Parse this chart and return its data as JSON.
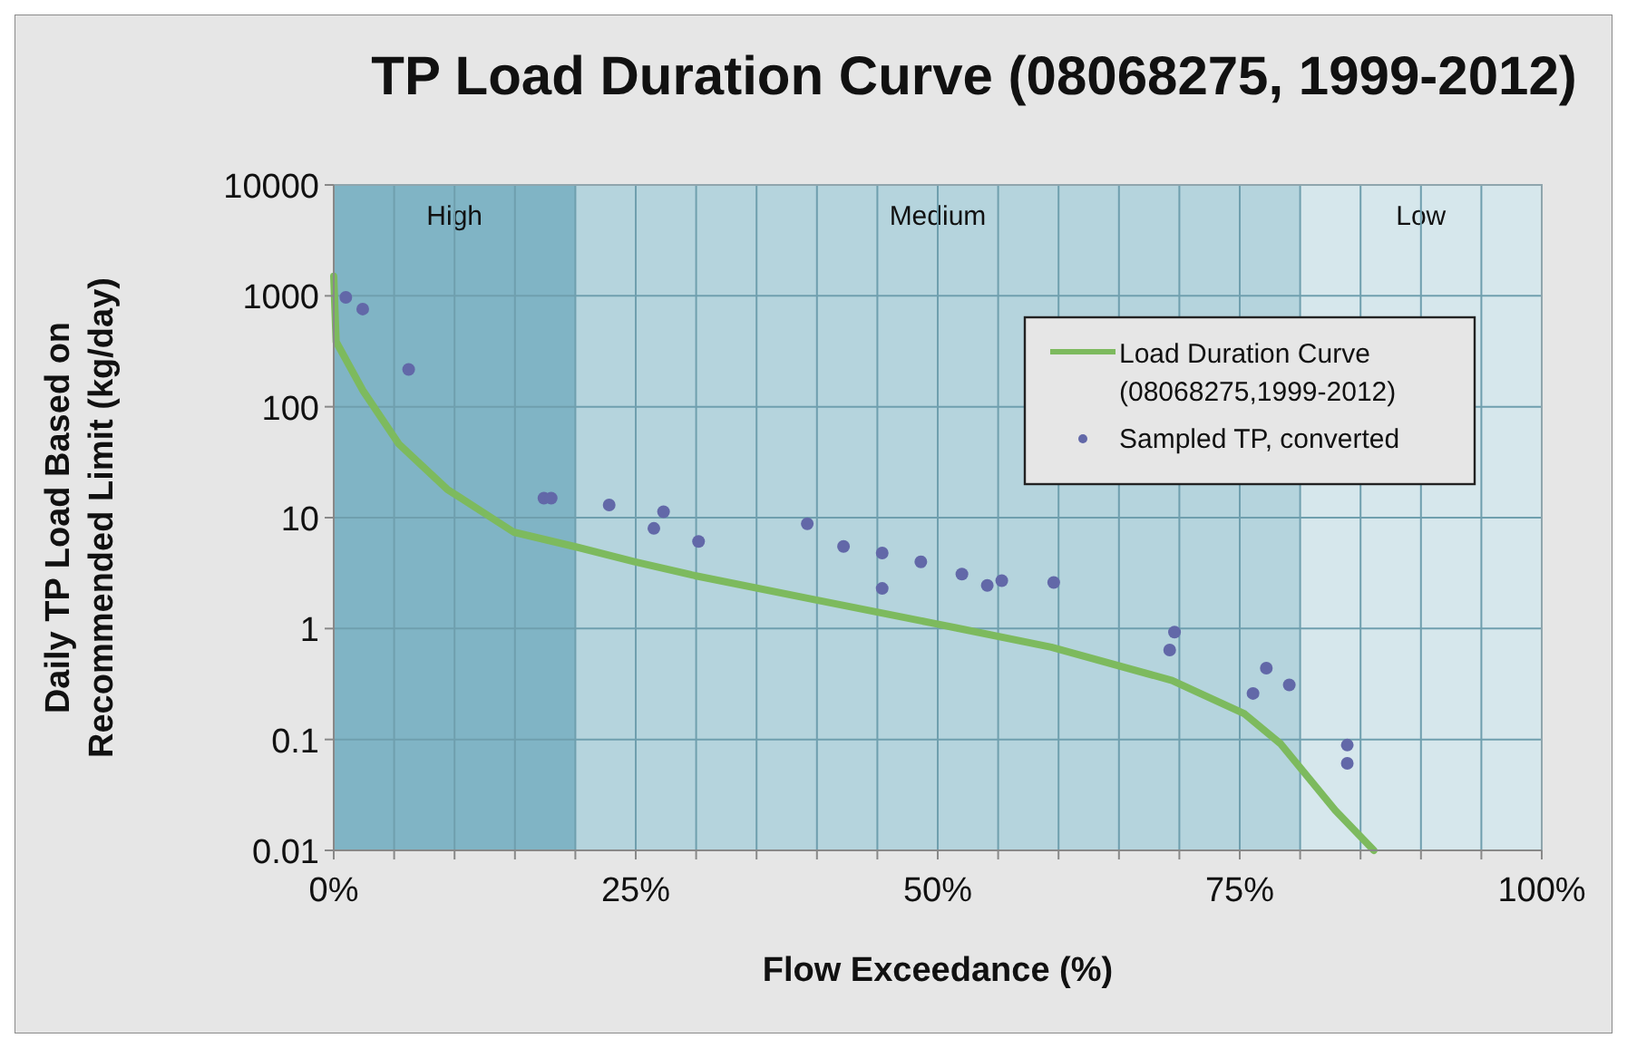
{
  "chart_data": {
    "type": "line",
    "title": "TP Load Duration Curve (08068275, 1999-2012)",
    "xlabel": "Flow Exceedance (%)",
    "ylabel": "Daily TP Load Based on Recommended Limit (kg/day)",
    "log": "y",
    "xlim": [
      0,
      100
    ],
    "ylim": [
      0.01,
      10000
    ],
    "xticks": [
      {
        "value": 0,
        "label": "0%"
      },
      {
        "value": 5,
        "label": null
      },
      {
        "value": 10,
        "label": null
      },
      {
        "value": 15,
        "label": null
      },
      {
        "value": 20,
        "label": null
      },
      {
        "value": 25,
        "label": "25%"
      },
      {
        "value": 30,
        "label": null
      },
      {
        "value": 35,
        "label": null
      },
      {
        "value": 40,
        "label": null
      },
      {
        "value": 45,
        "label": null
      },
      {
        "value": 50,
        "label": "50%"
      },
      {
        "value": 55,
        "label": null
      },
      {
        "value": 60,
        "label": null
      },
      {
        "value": 65,
        "label": null
      },
      {
        "value": 70,
        "label": null
      },
      {
        "value": 75,
        "label": "75%"
      },
      {
        "value": 80,
        "label": null
      },
      {
        "value": 85,
        "label": null
      },
      {
        "value": 90,
        "label": null
      },
      {
        "value": 95,
        "label": null
      },
      {
        "value": 100,
        "label": "100%"
      }
    ],
    "yticks": [
      0.01,
      0.1,
      1,
      10,
      100,
      1000,
      10000
    ],
    "grid": true,
    "legend": "top right",
    "bands": [
      {
        "axis": "x",
        "from": 0,
        "to": 20,
        "label": "High",
        "color": "#80b4c5"
      },
      {
        "axis": "x",
        "from": 20,
        "to": 80,
        "label": "Medium",
        "color": "#b5d4dd"
      },
      {
        "axis": "x",
        "from": 80,
        "to": 100,
        "label": "Low",
        "color": "#d6e7ec"
      }
    ],
    "series": [
      {
        "name": "Load Duration Curve (08068275,1999-2012)",
        "type": "line",
        "color": "#7dba5e",
        "marker": "none",
        "line_style": "solid",
        "x": [
          0,
          0.2,
          2.4,
          5.4,
          9.4,
          14.9,
          20.2,
          24.9,
          29.9,
          39.4,
          49.4,
          51.4,
          59.4,
          69.4,
          75.4,
          78.4,
          82.9,
          86.1
        ],
        "values": [
          1500,
          385,
          141,
          46,
          18,
          7.4,
          5.4,
          4.0,
          3.0,
          1.86,
          1.13,
          1.02,
          0.68,
          0.34,
          0.17,
          0.091,
          0.023,
          0.01
        ]
      },
      {
        "name": "Sampled TP, converted",
        "type": "scatter",
        "color": "#6268a8",
        "marker": "circle",
        "x": [
          1.0,
          2.4,
          6.2,
          17.4,
          18.0,
          22.8,
          26.5,
          27.3,
          30.2,
          39.2,
          42.2,
          45.4,
          45.4,
          48.6,
          52.0,
          54.1,
          55.3,
          59.6,
          69.6,
          69.2,
          77.2,
          76.1,
          79.1,
          83.9,
          83.9
        ],
        "values": [
          970,
          760,
          217,
          15,
          15,
          13,
          8,
          11.3,
          6.1,
          8.8,
          5.5,
          4.8,
          2.3,
          4.0,
          3.1,
          2.45,
          2.7,
          2.6,
          0.93,
          0.64,
          0.44,
          0.26,
          0.31,
          0.089,
          0.061
        ]
      }
    ]
  }
}
